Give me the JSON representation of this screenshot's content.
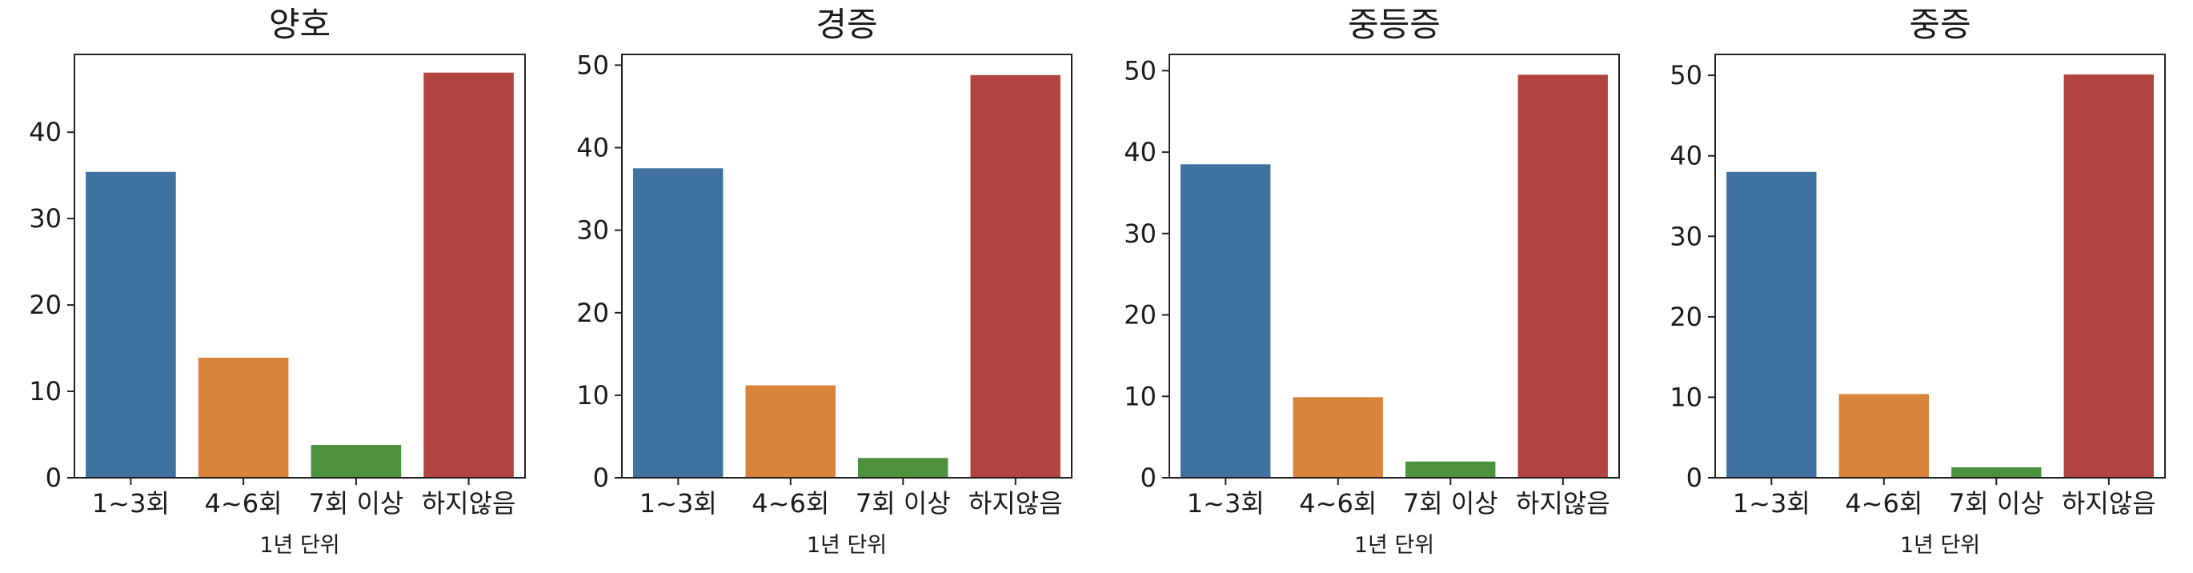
{
  "chart_data": [
    {
      "type": "bar",
      "title": "양호",
      "xlabel": "1년 단위",
      "ylabel": "",
      "categories": [
        "1~3회",
        "4~6회",
        "7회 이상",
        "하지않음"
      ],
      "values": [
        35.4,
        13.9,
        3.8,
        46.9
      ],
      "ylim": [
        0,
        49
      ],
      "yticks": [
        0,
        10,
        20,
        30,
        40
      ],
      "colors": [
        "#3f72a0",
        "#d9843b",
        "#4c913e",
        "#b2443f"
      ],
      "grid": false
    },
    {
      "type": "bar",
      "title": "경증",
      "xlabel": "1년 단위",
      "ylabel": "",
      "categories": [
        "1~3회",
        "4~6회",
        "7회 이상",
        "하지않음"
      ],
      "values": [
        37.5,
        11.2,
        2.4,
        48.8
      ],
      "ylim": [
        0,
        51.3
      ],
      "yticks": [
        0,
        10,
        20,
        30,
        40,
        50
      ],
      "colors": [
        "#3f72a0",
        "#d9843b",
        "#4c913e",
        "#b2443f"
      ],
      "grid": false
    },
    {
      "type": "bar",
      "title": "중등증",
      "xlabel": "1년 단위",
      "ylabel": "",
      "categories": [
        "1~3회",
        "4~6회",
        "7회 이상",
        "하지않음"
      ],
      "values": [
        38.5,
        9.9,
        2.0,
        49.5
      ],
      "ylim": [
        0,
        52
      ],
      "yticks": [
        0,
        10,
        20,
        30,
        40,
        50
      ],
      "colors": [
        "#3f72a0",
        "#d9843b",
        "#4c913e",
        "#b2443f"
      ],
      "grid": false
    },
    {
      "type": "bar",
      "title": "중증",
      "xlabel": "1년 단위",
      "ylabel": "",
      "categories": [
        "1~3회",
        "4~6회",
        "7회 이상",
        "하지않음"
      ],
      "values": [
        38.0,
        10.4,
        1.3,
        50.1
      ],
      "ylim": [
        0,
        52.6
      ],
      "yticks": [
        0,
        10,
        20,
        30,
        40,
        50
      ],
      "colors": [
        "#3f72a0",
        "#d9843b",
        "#4c913e",
        "#b2443f"
      ],
      "grid": false
    }
  ]
}
